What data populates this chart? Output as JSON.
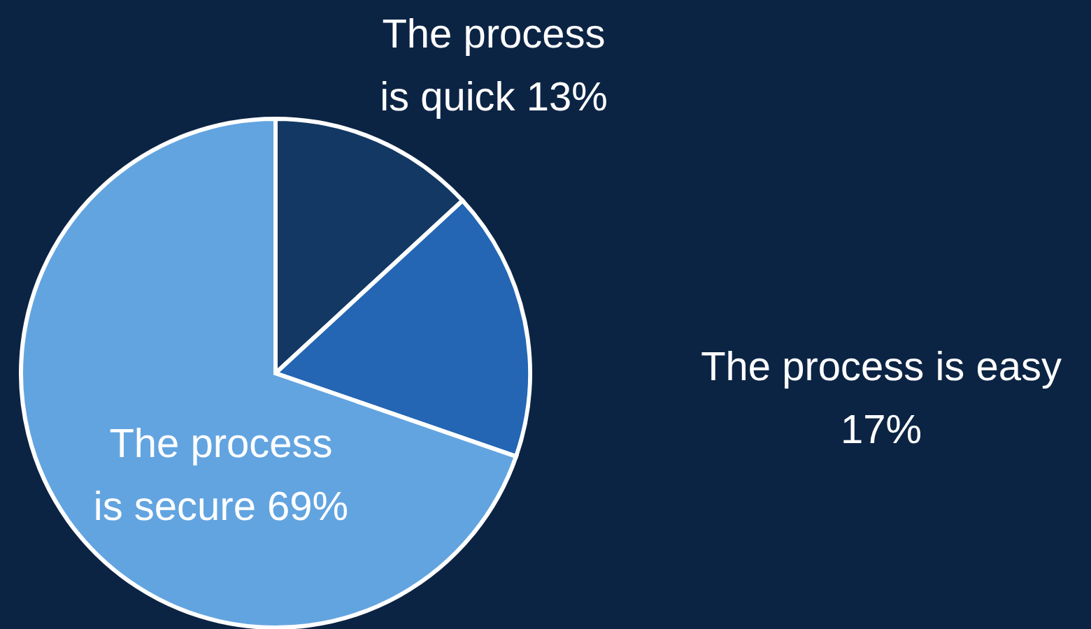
{
  "chart_data": {
    "type": "pie",
    "categories": [
      "The process is quick",
      "The process is easy",
      "The process is secure"
    ],
    "values": [
      13,
      17,
      69
    ],
    "value_labels": [
      "13%",
      "17%",
      "69%"
    ],
    "colors": [
      "#133864",
      "#2466b4",
      "#62a4e0"
    ]
  }
}
